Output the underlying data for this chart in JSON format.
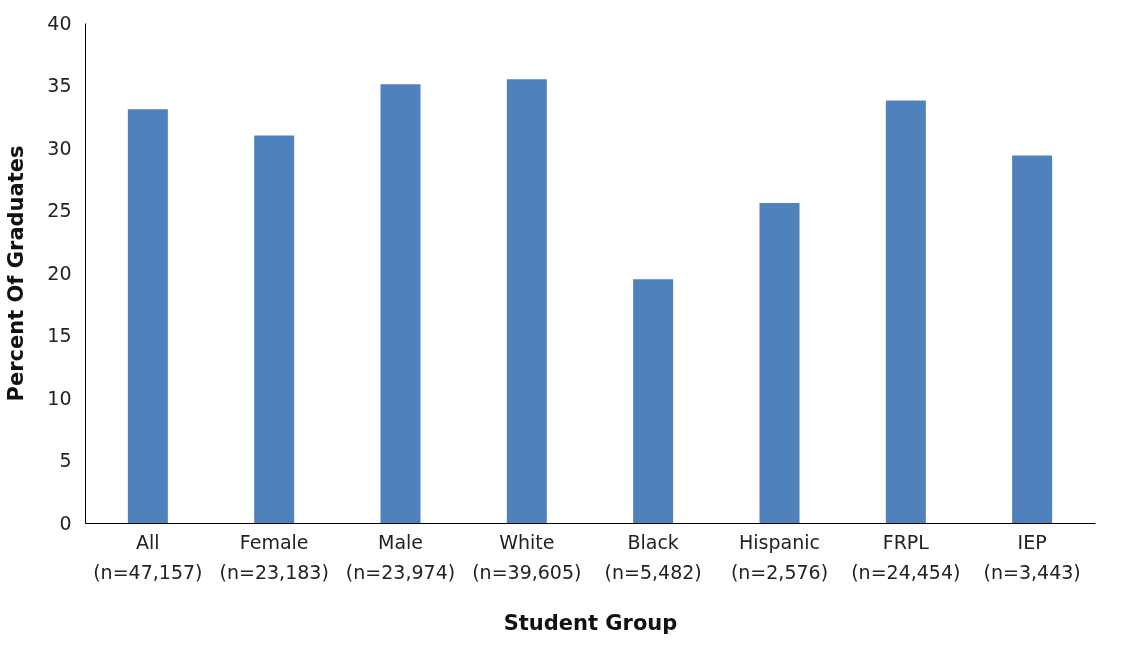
{
  "chart_data": {
    "type": "bar",
    "xlabel": "Student Group",
    "ylabel": "Percent Of Graduates",
    "categories": [
      "All (n=47,157)",
      "Female (n=23,183)",
      "Male (n=23,974)",
      "White (n=39,605)",
      "Black (n=5,482)",
      "Hispanic (n=2,576)",
      "FRPL (n=24,454)",
      "IEP (n=3,443)"
    ],
    "values": [
      33.1,
      31.0,
      35.1,
      35.5,
      19.5,
      25.6,
      33.8,
      29.4
    ],
    "color": "#4f81bd",
    "ylim": [
      0,
      40
    ],
    "yticks": [
      0,
      5,
      10,
      15,
      20,
      25,
      30,
      35,
      40
    ],
    "grid": false
  }
}
